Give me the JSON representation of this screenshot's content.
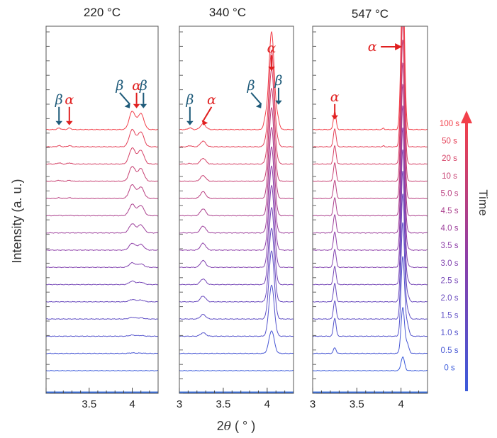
{
  "chart_data": {
    "type": "line",
    "ylabel": "Intensity (a. u.)",
    "xlabel_parts": [
      "2",
      "θ",
      " ( ° )"
    ],
    "time_axis_label": "Time",
    "time_labels": [
      "100 s",
      "50 s",
      "20 s",
      "10 s",
      "5.0 s",
      "4.5 s",
      "4.0 s",
      "3.5 s",
      "3.0 s",
      "2.5 s",
      "2.0 s",
      "1.5 s",
      "1.0 s",
      "0.5 s",
      "0 s"
    ],
    "colors": {
      "start": "#3b5bdb",
      "mid": "#8e3fa8",
      "end": "#f2404a",
      "alpha_marker": "#e02020",
      "beta_marker": "#1f5b7a"
    },
    "panels": [
      {
        "title": "220 °C",
        "xlim": [
          3.0,
          4.3
        ],
        "xticks": [
          3.5,
          4
        ],
        "xtick_labels": [
          "3.5",
          "4"
        ],
        "annotations": [
          {
            "label": "β",
            "x": 3.15,
            "type": "beta"
          },
          {
            "label": "α",
            "x": 3.27,
            "type": "alpha"
          },
          {
            "label": "β",
            "x": 3.97,
            "type": "beta"
          },
          {
            "label": "α",
            "x": 4.05,
            "type": "alpha"
          },
          {
            "label": "β",
            "x": 4.13,
            "type": "beta"
          }
        ],
        "peaks": [
          {
            "center": 4.0,
            "width": 0.035,
            "amplitude": [
              0,
              0.5,
              1,
              1.5,
              2,
              3,
              4,
              6,
              8,
              10,
              12,
              13,
              14,
              15,
              16
            ]
          },
          {
            "center": 4.1,
            "width": 0.035,
            "amplitude": [
              0,
              0.3,
              0.6,
              1,
              1.5,
              2,
              3,
              5,
              7,
              9,
              10,
              11,
              12,
              13,
              14
            ]
          },
          {
            "center": 3.15,
            "width": 0.02,
            "amplitude": [
              0,
              0,
              0,
              0,
              0,
              0,
              0,
              0,
              0,
              0.3,
              0.6,
              0.8,
              1,
              1,
              1.3
            ]
          },
          {
            "center": 3.27,
            "width": 0.02,
            "amplitude": [
              0,
              0,
              0,
              0,
              0,
              0,
              0,
              0,
              0,
              0.3,
              0.6,
              0.8,
              1,
              1,
              1.3
            ]
          }
        ]
      },
      {
        "title": "340 °C",
        "xlim": [
          3.0,
          4.3
        ],
        "xticks": [
          3,
          3.5,
          4
        ],
        "xtick_labels": [
          "3",
          "3.5",
          "4"
        ],
        "annotations": [
          {
            "label": "β",
            "x": 3.12,
            "type": "beta"
          },
          {
            "label": "α",
            "x": 3.27,
            "type": "alpha"
          },
          {
            "label": "β",
            "x": 3.93,
            "type": "beta"
          },
          {
            "label": "α",
            "x": 4.05,
            "type": "alpha"
          },
          {
            "label": "β",
            "x": 4.13,
            "type": "beta"
          }
        ],
        "peaks": [
          {
            "center": 4.05,
            "width": 0.03,
            "amplitude": [
              0,
              20,
              45,
              60,
              65,
              68,
              72,
              74,
              76,
              78,
              80,
              82,
              84,
              85,
              86
            ]
          },
          {
            "center": 3.98,
            "width": 0.02,
            "amplitude": [
              0,
              0,
              0,
              0,
              0,
              0,
              0,
              0,
              0,
              0,
              0,
              0,
              1,
              3,
              8
            ]
          },
          {
            "center": 4.12,
            "width": 0.02,
            "amplitude": [
              0,
              0,
              0,
              0,
              0,
              0,
              0,
              0,
              0,
              0,
              0,
              0,
              1,
              3,
              8
            ]
          },
          {
            "center": 3.27,
            "width": 0.03,
            "amplitude": [
              0,
              0,
              3,
              4,
              5,
              5,
              6,
              6,
              6,
              6,
              6,
              5,
              5,
              5,
              5
            ]
          },
          {
            "center": 3.12,
            "width": 0.02,
            "amplitude": [
              0,
              0,
              0,
              0,
              0,
              0,
              0,
              0,
              0,
              0,
              0,
              0,
              0.5,
              1,
              1.5
            ]
          }
        ]
      },
      {
        "title": "547 °C",
        "xlim": [
          3.0,
          4.3
        ],
        "xticks": [
          3,
          3.5,
          4
        ],
        "xtick_labels": [
          "3",
          "3.5",
          "4"
        ],
        "annotations": [
          {
            "label": "α",
            "x": 3.25,
            "type": "alpha"
          },
          {
            "label": "α",
            "x": 3.9,
            "type": "alpha-right"
          }
        ],
        "peaks": [
          {
            "center": 4.02,
            "width": 0.02,
            "amplitude": [
              12,
              40,
              70,
              85,
              95,
              100,
              104,
              108,
              112,
              116,
              120,
              125,
              128,
              132,
              135
            ]
          },
          {
            "center": 4.07,
            "width": 0.02,
            "amplitude": [
              0,
              8,
              10,
              8,
              6,
              4,
              3,
              2,
              1,
              0,
              0,
              0,
              0,
              0,
              0
            ]
          },
          {
            "center": 3.25,
            "width": 0.015,
            "amplitude": [
              0,
              5,
              16,
              16,
              16,
              16,
              16,
              16,
              16,
              16,
              16,
              16,
              16,
              16,
              16
            ]
          },
          {
            "center": 3.8,
            "width": 0.01,
            "amplitude": [
              0,
              0,
              0,
              0,
              0,
              0,
              0,
              0,
              0,
              0,
              0,
              0,
              0,
              0.8,
              1.2
            ]
          }
        ]
      }
    ]
  }
}
